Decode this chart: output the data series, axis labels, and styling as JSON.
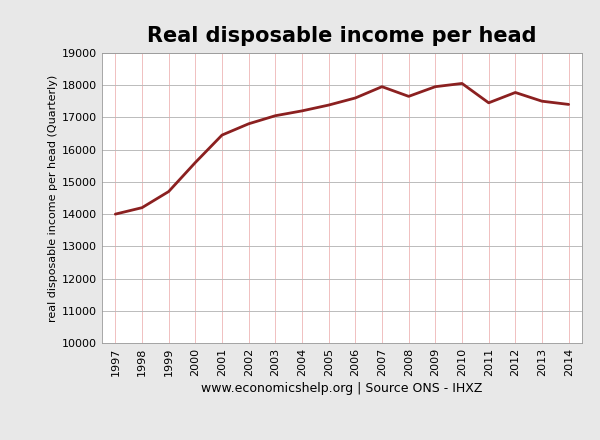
{
  "title": "Real disposable income per head",
  "ylabel": "real disposable income per head (Quarterly)",
  "xlabel_note": "www.economicshelp.org | Source ONS - IHXZ",
  "line_color": "#8B2020",
  "background_color": "#E8E8E8",
  "plot_bg_color": "#FFFFFF",
  "ylim": [
    10000,
    19000
  ],
  "yticks": [
    10000,
    11000,
    12000,
    13000,
    14000,
    15000,
    16000,
    17000,
    18000,
    19000
  ],
  "years": [
    1997,
    1998,
    1999,
    2000,
    2001,
    2002,
    2003,
    2004,
    2005,
    2006,
    2007,
    2008,
    2009,
    2010,
    2011,
    2012,
    2013,
    2014
  ],
  "values": [
    14000,
    14200,
    14700,
    15600,
    16450,
    16800,
    17050,
    17200,
    17380,
    17600,
    17950,
    17650,
    17950,
    18050,
    17450,
    17770,
    17500,
    17400
  ],
  "title_fontsize": 15,
  "tick_fontsize": 8,
  "ylabel_fontsize": 8,
  "note_fontsize": 9,
  "line_width": 2.0,
  "hgrid_color": "#BBBBBB",
  "vgrid_color": "#F0C0C0"
}
